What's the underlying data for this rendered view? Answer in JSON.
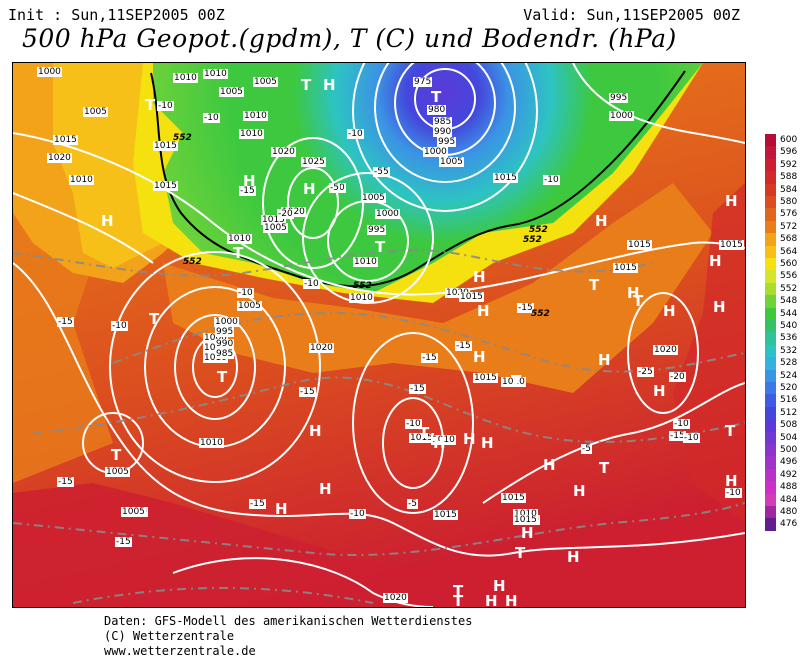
{
  "header": {
    "init": "Init : Sun,11SEP2005 00Z",
    "valid": "Valid: Sun,11SEP2005 00Z",
    "title": "500 hPa Geopot.(gpdm), T (C) und Bodendr. (hPa)"
  },
  "legend": {
    "values": [
      "600",
      "596",
      "592",
      "588",
      "584",
      "580",
      "576",
      "572",
      "568",
      "564",
      "560",
      "556",
      "552",
      "548",
      "544",
      "540",
      "536",
      "532",
      "528",
      "524",
      "520",
      "516",
      "512",
      "508",
      "504",
      "500",
      "496",
      "492",
      "488",
      "484",
      "480",
      "476"
    ],
    "colors": [
      "#b50d3a",
      "#c2163a",
      "#cc2030",
      "#d22a2a",
      "#d63a23",
      "#db4e1f",
      "#e2651c",
      "#e97d1a",
      "#f2a31a",
      "#f7c019",
      "#f5e010",
      "#d6e52a",
      "#a8dd2e",
      "#6fd23b",
      "#3dc83f",
      "#33c266",
      "#2fc39a",
      "#2dc3c3",
      "#34b1dc",
      "#3b93e4",
      "#3f78e6",
      "#3f5ce4",
      "#4447dc",
      "#5c3ad8",
      "#7338d4",
      "#8a36ce",
      "#a134c8",
      "#b832c6",
      "#cd30c4",
      "#d33cb5",
      "#a225a0",
      "#5e1f8c"
    ]
  },
  "map_labels": {
    "pressure": [
      "1000",
      "1010",
      "1005",
      "1010",
      "1005",
      "1010",
      "1015",
      "1020",
      "1010",
      "1015",
      "1005",
      "1010",
      "1015",
      "1020",
      "1025",
      "1020",
      "1015",
      "1010",
      "1005",
      "975",
      "980",
      "985",
      "990",
      "995",
      "1000",
      "1005",
      "1000",
      "995",
      "1015",
      "995",
      "1000",
      "1005",
      "1010",
      "1005",
      "1000",
      "1005",
      "1010",
      "1020",
      "1015",
      "1010",
      "1015",
      "1020",
      "1015",
      "1015",
      "1015",
      "1010",
      "1015",
      "1010",
      "1020",
      "1000",
      "995",
      "990",
      "985",
      "1010",
      "1005",
      "1010",
      "1005",
      "1015",
      "1020",
      "1015",
      "1010",
      "1010",
      "1015",
      "1020"
    ],
    "temperature": [
      "-25",
      "-25",
      "-25",
      "-25",
      "-30",
      "-35",
      "-30",
      "-25",
      "-25",
      "-20",
      "-25",
      "-25",
      "-20",
      "-25",
      "-20",
      "-15",
      "-15",
      "-15",
      "-10",
      "-15",
      "-15",
      "-15",
      "-15",
      "-15",
      "-10",
      "-5",
      "-5",
      "-10",
      "-10",
      "-10",
      "-10",
      "-10",
      "-15",
      "-20",
      "-10",
      "-5",
      "-5",
      "-10",
      "-15",
      "-10",
      "-10",
      "-10",
      "-15"
    ],
    "geopotential": [
      "552",
      "552",
      "552",
      "552",
      "552",
      "552"
    ],
    "highs": [
      "H",
      "H",
      "H",
      "H",
      "H",
      "H",
      "H",
      "H",
      "H",
      "H",
      "H",
      "H",
      "H",
      "H",
      "H",
      "H",
      "H",
      "H",
      "H",
      "H",
      "H",
      "H",
      "H",
      "H",
      "H",
      "H",
      "H",
      "H",
      "H"
    ],
    "lows": [
      "T",
      "T",
      "T",
      "T",
      "T",
      "T",
      "T",
      "T",
      "T",
      "T",
      "T",
      "T",
      "T",
      "T",
      "T",
      "T",
      "T"
    ]
  },
  "footer": {
    "line1": "Daten: GFS-Modell des amerikanischen Wetterdienstes",
    "line2": "(C) Wetterzentrale",
    "line3": "www.wetterzentrale.de"
  }
}
